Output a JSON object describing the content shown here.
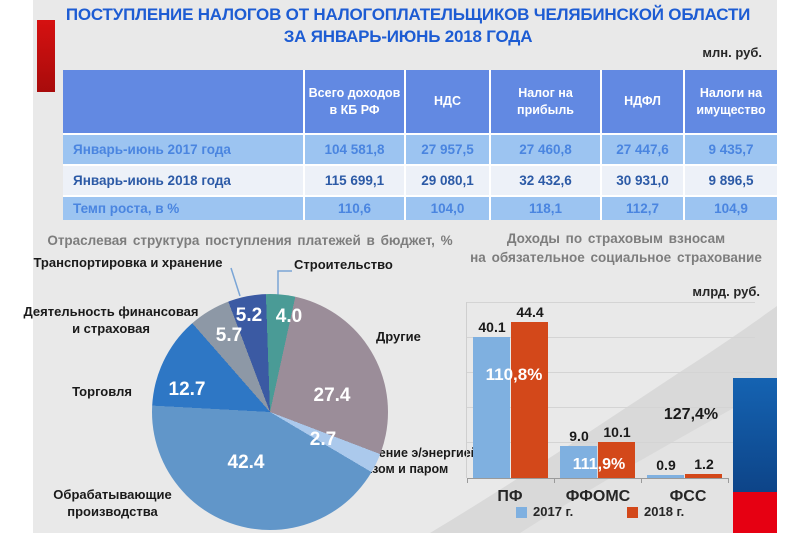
{
  "header": {
    "title_line1": "ПОСТУПЛЕНИЕ  НАЛОГОВ ОТ НАЛОГОПЛАТЕЛЬЩИКОВ ЧЕЛЯБИНСКОЙ ОБЛАСТИ",
    "title_line2": "ЗА ЯНВАРЬ-ИЮНЬ 2018 ГОДА",
    "table_unit": "млн. руб."
  },
  "colors": {
    "title_blue": "#1d5cd3",
    "accent_red": "#d61111",
    "hdr_blue": "#6289e2",
    "row_blue": "#9cc4f1",
    "row_light": "#edf1f8",
    "txt_row": "#4a85e0",
    "txt_row_strong": "#2c5aa6",
    "gray_title": "#7d7d7d",
    "flag_blue": "#1563b2",
    "flag_red": "#e60012"
  },
  "chart_data": [
    {
      "type": "table",
      "columns": [
        "",
        "Всего доходов в КБ РФ",
        "НДС",
        "Налог на прибыль",
        "НДФЛ",
        "Налоги на имущество"
      ],
      "rows": [
        {
          "label": "Январь-июнь 2017 года",
          "values": [
            "104 581,8",
            "27 957,5",
            "27 460,8",
            "27 447,6",
            "9 435,7"
          ]
        },
        {
          "label": "Январь-июнь 2018 года",
          "values": [
            "115 699,1",
            "29 080,1",
            "32 432,6",
            "30 931,0",
            "9 896,5"
          ]
        },
        {
          "label": "Темп роста, в %",
          "values": [
            "110,6",
            "104,0",
            "118,1",
            "112,7",
            "104,9"
          ]
        }
      ]
    },
    {
      "type": "pie",
      "title": "Отраслевая  структура  поступления  платежей  в бюджет, %",
      "start_angle_deg": -2,
      "slices": [
        {
          "label": "Строительство",
          "value": 4.0,
          "display": "4.0",
          "color": "#4a9b96"
        },
        {
          "label": "Другие",
          "value": 27.4,
          "display": "27.4",
          "color": "#9b8d99"
        },
        {
          "label": "Обеспечение э/энергией, газом и паром",
          "value": 2.7,
          "display": "2.7",
          "color": "#abc9ec"
        },
        {
          "label": "Обрабатывающие производства",
          "value": 42.4,
          "display": "42.4",
          "color": "#6196c9"
        },
        {
          "label": "Торговля",
          "value": 12.7,
          "display": "12.7",
          "color": "#2e77c5"
        },
        {
          "label": "Деятельность финансовая и страховая",
          "value": 5.7,
          "display": "5.7",
          "color": "#8d98a6"
        },
        {
          "label": "Транспортировка и хранение",
          "value": 5.2,
          "display": "5.2",
          "color": "#3b5aa3"
        }
      ]
    },
    {
      "type": "bar",
      "title_line1": "Доходы по страховым взносам",
      "title_line2": "на обязательное социальное страхование",
      "unit": "млрд. руб.",
      "categories": [
        "ПФ",
        "ФФОМС",
        "ФСС"
      ],
      "series": [
        {
          "name": "2017 г.",
          "color": "#7fb0e0",
          "values": [
            40.1,
            9.0,
            0.9
          ],
          "display": [
            "40.1",
            "9.0",
            "0.9"
          ]
        },
        {
          "name": "2018 г.",
          "color": "#d3481a",
          "values": [
            44.4,
            10.1,
            1.2
          ],
          "display": [
            "44.4",
            "10.1",
            "1.2"
          ]
        }
      ],
      "growth_labels": [
        "110,8%",
        "111,9%",
        "127,4%"
      ],
      "ylim": [
        0,
        50
      ],
      "grid_step": 10,
      "legend_position": "bottom"
    }
  ]
}
